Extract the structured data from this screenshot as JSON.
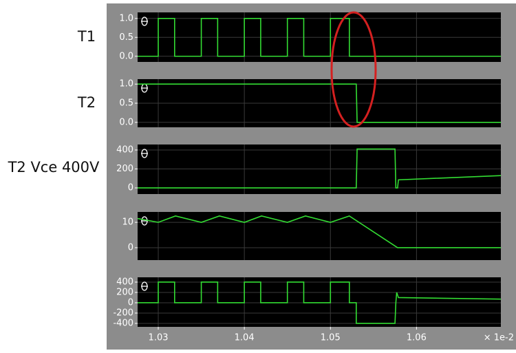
{
  "chart_data": [
    {
      "type": "line",
      "title": "T1",
      "color": "#33dd33",
      "x": [
        1.0276,
        1.03,
        1.03,
        1.0319,
        1.0319,
        1.035,
        1.035,
        1.0369,
        1.0369,
        1.04,
        1.04,
        1.0419,
        1.0419,
        1.045,
        1.045,
        1.0469,
        1.0469,
        1.05,
        1.05,
        1.0522,
        1.0522,
        1.0698
      ],
      "values": [
        0,
        0,
        1,
        1,
        0,
        0,
        1,
        1,
        0,
        0,
        1,
        1,
        0,
        0,
        1,
        1,
        0,
        0,
        1,
        1,
        0,
        0
      ],
      "xlim": [
        1.0276,
        1.0698
      ],
      "ylim": [
        -0.15,
        1.16
      ],
      "yticks": [
        {
          "value": 1,
          "label": "1.0"
        },
        0.5,
        {
          "value": 0,
          "label": "0.0"
        }
      ],
      "grid": true
    },
    {
      "type": "line",
      "title": "T2",
      "color": "#33dd33",
      "x": [
        1.0276,
        1.053,
        1.0531,
        1.0698
      ],
      "values": [
        1,
        1,
        0,
        0
      ],
      "xlim": [
        1.0276,
        1.0698
      ],
      "ylim": [
        -0.13,
        1.13
      ],
      "yticks": [
        {
          "value": 1,
          "label": "1.0"
        },
        0.5,
        {
          "value": 0,
          "label": "0.0"
        }
      ],
      "grid": true
    },
    {
      "type": "line",
      "title": "T2 Vce 400V",
      "color": "#33dd33",
      "x": [
        1.0276,
        1.053,
        1.0531,
        1.0575,
        1.0576,
        1.0578,
        1.0579,
        1.0698
      ],
      "values": [
        0,
        0,
        410,
        410,
        0,
        0,
        85,
        130
      ],
      "xlim": [
        1.0276,
        1.0698
      ],
      "ylim": [
        -65,
        458
      ],
      "yticks": [
        400,
        200,
        0
      ],
      "grid": true
    },
    {
      "type": "line",
      "color": "#33dd33",
      "x": [
        1.0276,
        1.03,
        1.032,
        1.035,
        1.0371,
        1.04,
        1.042,
        1.045,
        1.0471,
        1.05,
        1.0522,
        1.0578,
        1.0698
      ],
      "values": [
        11.5,
        10,
        12.5,
        10,
        12.5,
        10,
        12.5,
        10,
        12.5,
        10,
        12.5,
        0,
        0
      ],
      "xlim": [
        1.0276,
        1.0698
      ],
      "ylim": [
        -4.9,
        14.1
      ],
      "yticks": [
        10,
        0
      ],
      "grid": true
    },
    {
      "type": "line",
      "color": "#33dd33",
      "x": [
        1.0276,
        1.03,
        1.03,
        1.0319,
        1.0319,
        1.035,
        1.035,
        1.0369,
        1.0369,
        1.04,
        1.04,
        1.0419,
        1.0419,
        1.045,
        1.045,
        1.0469,
        1.0469,
        1.05,
        1.05,
        1.0522,
        1.0522,
        1.053,
        1.053,
        1.0575,
        1.0576,
        1.0577,
        1.0579,
        1.0698
      ],
      "values": [
        0,
        0,
        400,
        400,
        0,
        0,
        400,
        400,
        0,
        0,
        400,
        400,
        0,
        0,
        400,
        400,
        0,
        0,
        400,
        400,
        0,
        0,
        -400,
        -400,
        0,
        200,
        100,
        70
      ],
      "xlim": [
        1.0276,
        1.0698
      ],
      "ylim": [
        -467,
        493
      ],
      "yticks": [
        400,
        200,
        0,
        -200,
        -400
      ],
      "grid": true,
      "xticks": [
        1.03,
        1.04,
        1.05,
        1.06
      ],
      "x_offset_label": "× 1e-2"
    }
  ]
}
